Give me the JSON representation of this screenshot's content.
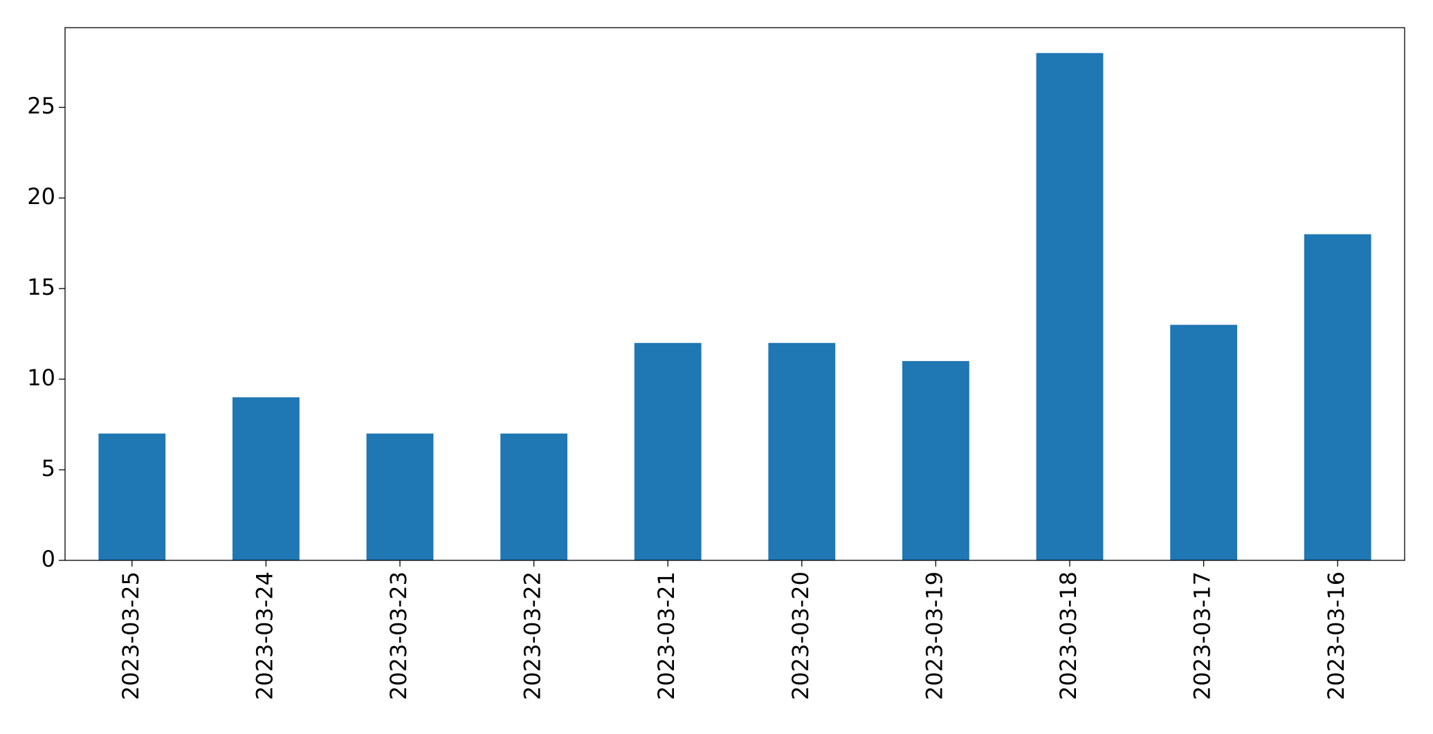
{
  "chart_data": {
    "type": "bar",
    "categories": [
      "2023-03-25",
      "2023-03-24",
      "2023-03-23",
      "2023-03-22",
      "2023-03-21",
      "2023-03-20",
      "2023-03-19",
      "2023-03-18",
      "2023-03-17",
      "2023-03-16"
    ],
    "values": [
      7,
      9,
      7,
      7,
      12,
      12,
      11,
      28,
      13,
      18
    ],
    "color": "#1f77b4",
    "ylim": [
      0,
      29.4
    ],
    "yticks": [
      0,
      5,
      10,
      15,
      20,
      25
    ],
    "grid": false
  }
}
